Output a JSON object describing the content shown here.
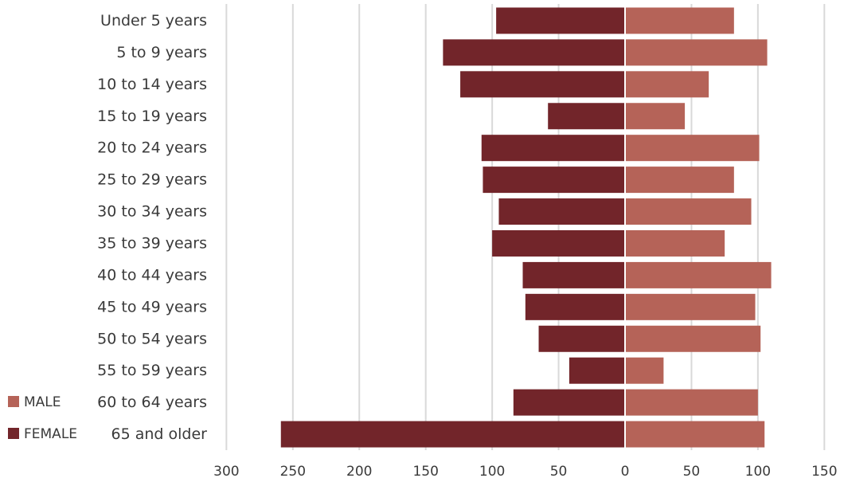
{
  "chart_data": {
    "type": "bar",
    "orientation": "horizontal-population-pyramid",
    "categories": [
      "Under 5 years",
      "5 to 9 years",
      "10 to 14 years",
      "15 to 19 years",
      "20 to 24 years",
      "25 to 29 years",
      "30 to 34 years",
      "35 to 39 years",
      "40 to 44 years",
      "45 to 49 years",
      "50 to 54 years",
      "55 to 59 years",
      "60 to 64 years",
      "65 and older"
    ],
    "series": [
      {
        "name": "MALE",
        "color": "#b56358",
        "side": "right",
        "values": [
          82,
          107,
          63,
          45,
          101,
          82,
          95,
          75,
          110,
          98,
          102,
          29,
          100,
          105
        ]
      },
      {
        "name": "FEMALE",
        "color": "#72252a",
        "side": "left",
        "values": [
          97,
          137,
          124,
          58,
          108,
          107,
          95,
          100,
          77,
          75,
          65,
          42,
          84,
          259
        ]
      }
    ],
    "xticks": [
      "300",
      "250",
      "200",
      "150",
      "100",
      "50",
      "0",
      "50",
      "100",
      "150"
    ],
    "xlim": [
      -300,
      150
    ],
    "grid": true,
    "legend": "bottom-left"
  }
}
